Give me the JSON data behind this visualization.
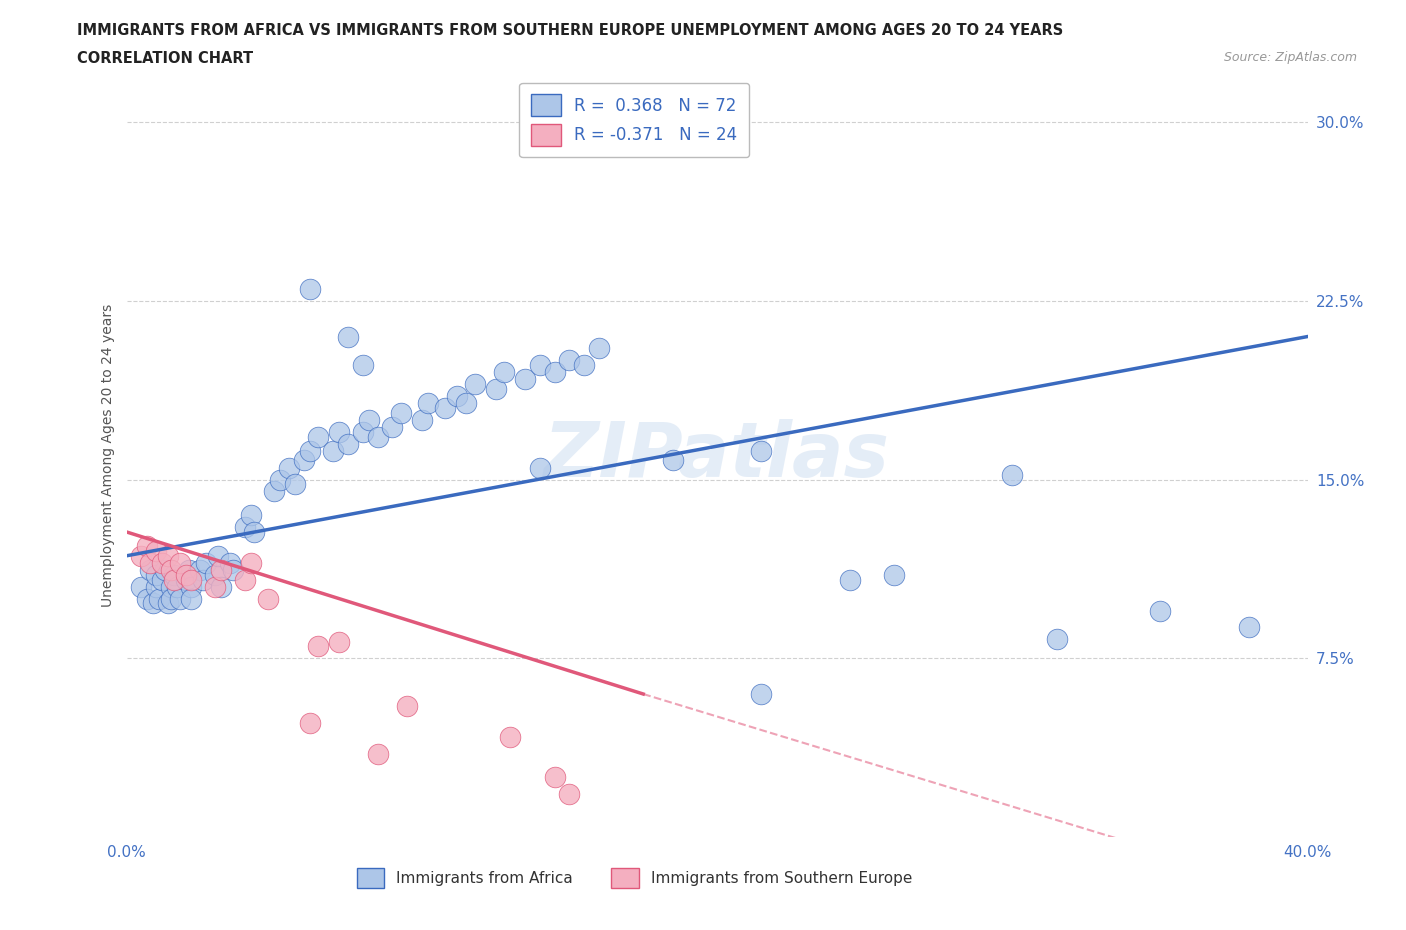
{
  "title_line1": "IMMIGRANTS FROM AFRICA VS IMMIGRANTS FROM SOUTHERN EUROPE UNEMPLOYMENT AMONG AGES 20 TO 24 YEARS",
  "title_line2": "CORRELATION CHART",
  "source": "Source: ZipAtlas.com",
  "ylabel": "Unemployment Among Ages 20 to 24 years",
  "xlim": [
    0.0,
    0.4
  ],
  "ylim": [
    0.0,
    0.32
  ],
  "xticks": [
    0.0,
    0.1,
    0.2,
    0.3,
    0.4
  ],
  "xticklabels": [
    "0.0%",
    "",
    "",
    "",
    "40.0%"
  ],
  "yticks": [
    0.0,
    0.075,
    0.15,
    0.225,
    0.3
  ],
  "yticklabels": [
    "",
    "7.5%",
    "15.0%",
    "22.5%",
    "30.0%"
  ],
  "R_africa": 0.368,
  "N_africa": 72,
  "R_europe": -0.371,
  "N_europe": 24,
  "color_africa": "#adc6e8",
  "color_europe": "#f4afc0",
  "line_color_africa": "#3a6abf",
  "line_color_europe": "#e0587a",
  "watermark": "ZIPatlas",
  "africa_points": [
    [
      0.005,
      0.105
    ],
    [
      0.007,
      0.1
    ],
    [
      0.008,
      0.112
    ],
    [
      0.009,
      0.098
    ],
    [
      0.01,
      0.105
    ],
    [
      0.01,
      0.11
    ],
    [
      0.011,
      0.1
    ],
    [
      0.012,
      0.108
    ],
    [
      0.013,
      0.112
    ],
    [
      0.014,
      0.098
    ],
    [
      0.015,
      0.105
    ],
    [
      0.015,
      0.1
    ],
    [
      0.016,
      0.11
    ],
    [
      0.017,
      0.105
    ],
    [
      0.018,
      0.1
    ],
    [
      0.02,
      0.108
    ],
    [
      0.021,
      0.112
    ],
    [
      0.022,
      0.105
    ],
    [
      0.022,
      0.1
    ],
    [
      0.025,
      0.112
    ],
    [
      0.026,
      0.108
    ],
    [
      0.027,
      0.115
    ],
    [
      0.03,
      0.11
    ],
    [
      0.031,
      0.118
    ],
    [
      0.032,
      0.105
    ],
    [
      0.035,
      0.115
    ],
    [
      0.036,
      0.112
    ],
    [
      0.04,
      0.13
    ],
    [
      0.042,
      0.135
    ],
    [
      0.043,
      0.128
    ],
    [
      0.05,
      0.145
    ],
    [
      0.052,
      0.15
    ],
    [
      0.055,
      0.155
    ],
    [
      0.057,
      0.148
    ],
    [
      0.06,
      0.158
    ],
    [
      0.062,
      0.162
    ],
    [
      0.065,
      0.168
    ],
    [
      0.07,
      0.162
    ],
    [
      0.072,
      0.17
    ],
    [
      0.075,
      0.165
    ],
    [
      0.08,
      0.17
    ],
    [
      0.082,
      0.175
    ],
    [
      0.085,
      0.168
    ],
    [
      0.09,
      0.172
    ],
    [
      0.093,
      0.178
    ],
    [
      0.1,
      0.175
    ],
    [
      0.102,
      0.182
    ],
    [
      0.108,
      0.18
    ],
    [
      0.112,
      0.185
    ],
    [
      0.115,
      0.182
    ],
    [
      0.118,
      0.19
    ],
    [
      0.125,
      0.188
    ],
    [
      0.128,
      0.195
    ],
    [
      0.135,
      0.192
    ],
    [
      0.14,
      0.198
    ],
    [
      0.145,
      0.195
    ],
    [
      0.15,
      0.2
    ],
    [
      0.155,
      0.198
    ],
    [
      0.16,
      0.205
    ],
    [
      0.062,
      0.23
    ],
    [
      0.075,
      0.21
    ],
    [
      0.08,
      0.198
    ],
    [
      0.14,
      0.155
    ],
    [
      0.185,
      0.158
    ],
    [
      0.215,
      0.162
    ],
    [
      0.245,
      0.108
    ],
    [
      0.26,
      0.11
    ],
    [
      0.3,
      0.152
    ],
    [
      0.315,
      0.083
    ],
    [
      0.35,
      0.095
    ],
    [
      0.38,
      0.088
    ],
    [
      0.215,
      0.06
    ]
  ],
  "europe_points": [
    [
      0.005,
      0.118
    ],
    [
      0.007,
      0.122
    ],
    [
      0.008,
      0.115
    ],
    [
      0.01,
      0.12
    ],
    [
      0.012,
      0.115
    ],
    [
      0.014,
      0.118
    ],
    [
      0.015,
      0.112
    ],
    [
      0.016,
      0.108
    ],
    [
      0.018,
      0.115
    ],
    [
      0.02,
      0.11
    ],
    [
      0.022,
      0.108
    ],
    [
      0.03,
      0.105
    ],
    [
      0.032,
      0.112
    ],
    [
      0.04,
      0.108
    ],
    [
      0.042,
      0.115
    ],
    [
      0.048,
      0.1
    ],
    [
      0.065,
      0.08
    ],
    [
      0.072,
      0.082
    ],
    [
      0.095,
      0.055
    ],
    [
      0.13,
      0.042
    ],
    [
      0.145,
      0.025
    ],
    [
      0.15,
      0.018
    ],
    [
      0.062,
      0.048
    ],
    [
      0.085,
      0.035
    ]
  ],
  "africa_line": [
    [
      0.0,
      0.118
    ],
    [
      0.4,
      0.21
    ]
  ],
  "europe_line_solid": [
    [
      0.0,
      0.128
    ],
    [
      0.175,
      0.06
    ]
  ],
  "europe_line_dashed": [
    [
      0.175,
      0.06
    ],
    [
      0.4,
      -0.025
    ]
  ],
  "legend_africa_label": "R =  0.368   N = 72",
  "legend_europe_label": "R = -0.371   N = 24",
  "bottom_legend_africa": "Immigrants from Africa",
  "bottom_legend_europe": "Immigrants from Southern Europe",
  "title_color": "#222222",
  "tick_color": "#4472c4",
  "grid_color": "#d0d0d0"
}
